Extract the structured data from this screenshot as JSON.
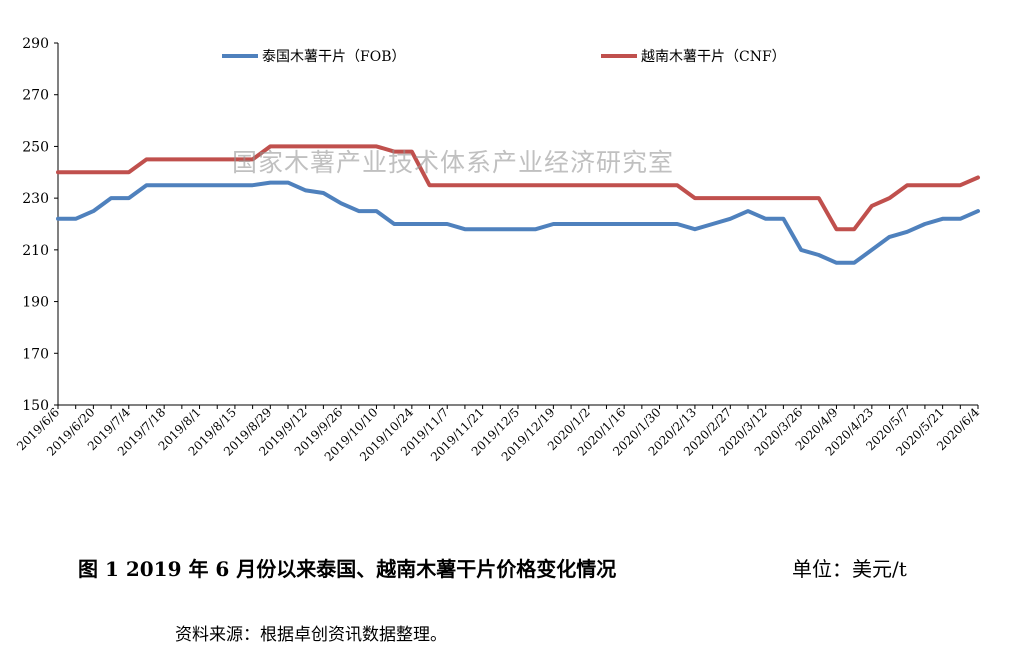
{
  "watermark": "国家木薯产业技术体系产业经济研究室",
  "caption": "图 1   2019 年 6 月份以来泰国、越南木薯干片价格变化情况",
  "unit_label": "单位：美元/t",
  "source_note": "资料来源：根据卓创资讯数据整理。",
  "chart_data": {
    "type": "line",
    "title": "",
    "xlabel": "",
    "ylabel": "",
    "ylim": [
      150,
      290
    ],
    "yticks": [
      150,
      170,
      190,
      210,
      230,
      250,
      270,
      290
    ],
    "grid": false,
    "legend_position": "top",
    "x_tick_labels": [
      "2019/6/6",
      "2019/6/20",
      "2019/7/4",
      "2019/7/18",
      "2019/8/1",
      "2019/8/15",
      "2019/8/29",
      "2019/9/12",
      "2019/9/26",
      "2019/10/10",
      "2019/10/24",
      "2019/11/7",
      "2019/11/21",
      "2019/12/5",
      "2019/12/19",
      "2020/1/2",
      "2020/1/16",
      "2020/1/30",
      "2020/2/13",
      "2020/2/27",
      "2020/3/12",
      "2020/3/26",
      "2020/4/9",
      "2020/4/23",
      "2020/5/7",
      "2020/5/21",
      "2020/6/4"
    ],
    "x": [
      "2019/6/6",
      "2019/6/13",
      "2019/6/20",
      "2019/6/27",
      "2019/7/4",
      "2019/7/11",
      "2019/7/18",
      "2019/7/25",
      "2019/8/1",
      "2019/8/8",
      "2019/8/15",
      "2019/8/22",
      "2019/8/29",
      "2019/9/5",
      "2019/9/12",
      "2019/9/19",
      "2019/9/26",
      "2019/10/3",
      "2019/10/10",
      "2019/10/17",
      "2019/10/24",
      "2019/10/31",
      "2019/11/7",
      "2019/11/14",
      "2019/11/21",
      "2019/11/28",
      "2019/12/5",
      "2019/12/12",
      "2019/12/19",
      "2019/12/26",
      "2020/1/2",
      "2020/1/9",
      "2020/1/16",
      "2020/1/23",
      "2020/1/30",
      "2020/2/6",
      "2020/2/13",
      "2020/2/20",
      "2020/2/27",
      "2020/3/5",
      "2020/3/12",
      "2020/3/19",
      "2020/3/26",
      "2020/4/2",
      "2020/4/9",
      "2020/4/16",
      "2020/4/23",
      "2020/4/30",
      "2020/5/7",
      "2020/5/14",
      "2020/5/21",
      "2020/5/28",
      "2020/6/4"
    ],
    "series": [
      {
        "name": "泰国木薯干片（FOB）",
        "color": "#4f81bd",
        "values": [
          222,
          222,
          225,
          230,
          230,
          235,
          235,
          235,
          235,
          235,
          235,
          235,
          236,
          236,
          233,
          232,
          228,
          225,
          225,
          220,
          220,
          220,
          220,
          218,
          218,
          218,
          218,
          218,
          220,
          220,
          220,
          220,
          220,
          220,
          220,
          220,
          218,
          220,
          222,
          225,
          222,
          222,
          210,
          208,
          205,
          205,
          210,
          215,
          217,
          220,
          222,
          222,
          225
        ]
      },
      {
        "name": "越南木薯干片（CNF）",
        "color": "#c0504d",
        "values": [
          240,
          240,
          240,
          240,
          240,
          245,
          245,
          245,
          245,
          245,
          245,
          245,
          250,
          250,
          250,
          250,
          250,
          250,
          250,
          248,
          248,
          235,
          235,
          235,
          235,
          235,
          235,
          235,
          235,
          235,
          235,
          235,
          235,
          235,
          235,
          235,
          230,
          230,
          230,
          230,
          230,
          230,
          230,
          230,
          218,
          218,
          227,
          230,
          235,
          235,
          235,
          235,
          238
        ]
      }
    ]
  }
}
